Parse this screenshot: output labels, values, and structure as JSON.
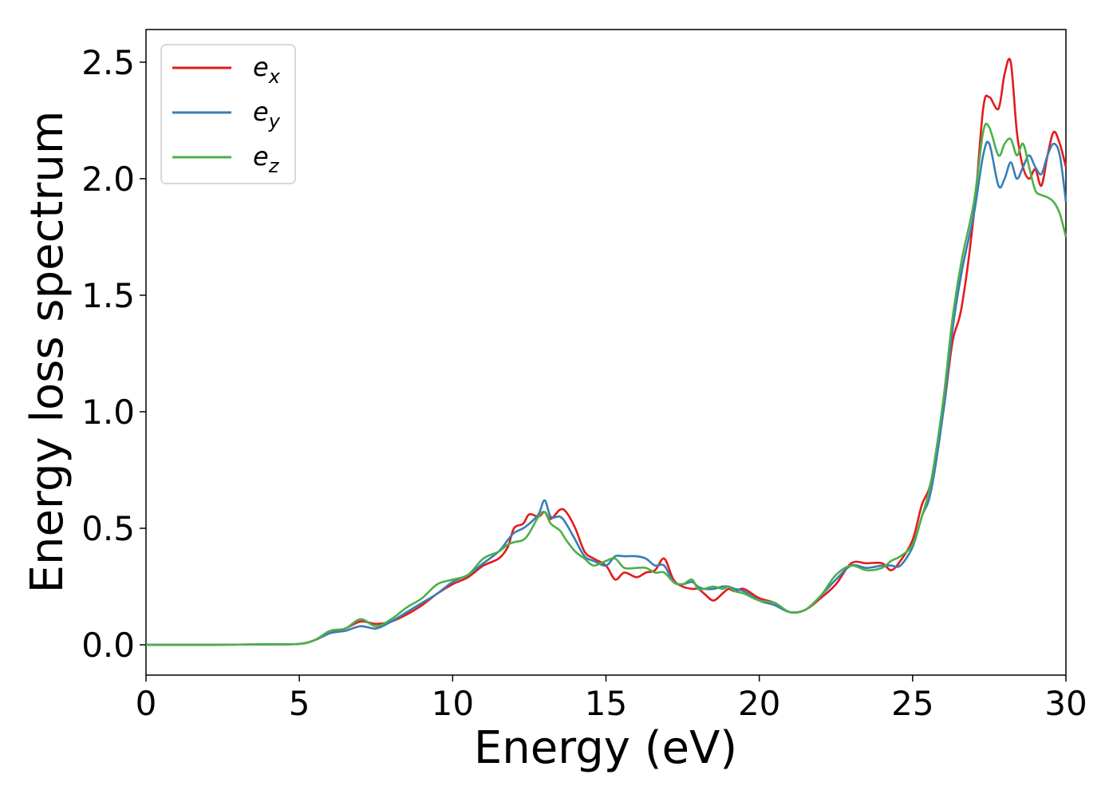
{
  "chart_data": {
    "type": "line",
    "title": "",
    "xlabel": "Energy (eV)",
    "ylabel": "Energy loss spectrum",
    "xlim": [
      0,
      30
    ],
    "ylim": [
      -0.13,
      2.64
    ],
    "xticks": [
      0,
      5,
      10,
      15,
      20,
      25,
      30
    ],
    "xtick_labels": [
      "0",
      "5",
      "10",
      "15",
      "20",
      "25",
      "30"
    ],
    "yticks": [
      0.0,
      0.5,
      1.0,
      1.5,
      2.0,
      2.5
    ],
    "ytick_labels": [
      "0.0",
      "0.5",
      "1.0",
      "1.5",
      "2.0",
      "2.5"
    ],
    "grid": false,
    "legend_position": "top-left",
    "series": [
      {
        "name": "e",
        "subscript": "x",
        "color": "#e41a1c",
        "x": [
          0,
          1,
          2,
          3,
          4,
          5,
          5.5,
          6,
          6.5,
          7,
          7.5,
          8,
          8.5,
          9,
          9.5,
          10,
          10.5,
          11,
          11.5,
          11.8,
          12,
          12.3,
          12.5,
          12.8,
          13,
          13.2,
          13.5,
          13.7,
          14,
          14.3,
          14.6,
          15,
          15.3,
          15.6,
          16,
          16.3,
          16.6,
          16.9,
          17.2,
          17.5,
          17.8,
          18,
          18.2,
          18.5,
          18.8,
          19,
          19.2,
          19.5,
          20,
          20.5,
          21,
          21.5,
          22,
          22.5,
          23,
          23.5,
          24,
          24.3,
          24.6,
          25,
          25.3,
          25.6,
          26,
          26.3,
          26.6,
          27,
          27.3,
          27.5,
          27.8,
          28,
          28.2,
          28.4,
          28.6,
          28.8,
          29,
          29.2,
          29.4,
          29.6,
          29.8,
          30
        ],
        "y": [
          0,
          0,
          0,
          0.001,
          0.002,
          0.004,
          0.02,
          0.05,
          0.07,
          0.1,
          0.09,
          0.1,
          0.13,
          0.17,
          0.22,
          0.26,
          0.29,
          0.34,
          0.37,
          0.42,
          0.5,
          0.52,
          0.56,
          0.55,
          0.57,
          0.54,
          0.58,
          0.57,
          0.5,
          0.4,
          0.37,
          0.34,
          0.28,
          0.31,
          0.29,
          0.31,
          0.32,
          0.37,
          0.28,
          0.25,
          0.24,
          0.24,
          0.22,
          0.19,
          0.22,
          0.24,
          0.23,
          0.24,
          0.2,
          0.18,
          0.14,
          0.15,
          0.2,
          0.26,
          0.35,
          0.35,
          0.35,
          0.32,
          0.36,
          0.45,
          0.6,
          0.7,
          1.0,
          1.3,
          1.45,
          1.85,
          2.3,
          2.35,
          2.3,
          2.45,
          2.5,
          2.2,
          2.05,
          2.0,
          2.04,
          1.97,
          2.1,
          2.2,
          2.15,
          2.05
        ]
      },
      {
        "name": "e",
        "subscript": "y",
        "color": "#377eb8",
        "x": [
          0,
          1,
          2,
          3,
          4,
          5,
          5.5,
          6,
          6.5,
          7,
          7.5,
          8,
          8.5,
          9,
          9.5,
          10,
          10.5,
          11,
          11.5,
          11.8,
          12,
          12.3,
          12.5,
          12.8,
          13,
          13.2,
          13.5,
          13.7,
          14,
          14.3,
          14.6,
          15,
          15.3,
          15.6,
          16,
          16.3,
          16.6,
          16.9,
          17.2,
          17.5,
          17.8,
          18,
          18.2,
          18.5,
          18.8,
          19,
          19.2,
          19.5,
          20,
          20.5,
          21,
          21.5,
          22,
          22.5,
          23,
          23.5,
          24,
          24.3,
          24.6,
          25,
          25.3,
          25.6,
          26,
          26.3,
          26.6,
          27,
          27.3,
          27.5,
          27.8,
          28,
          28.2,
          28.4,
          28.6,
          28.8,
          29,
          29.2,
          29.4,
          29.6,
          29.8,
          30
        ],
        "y": [
          0,
          0,
          0,
          0.001,
          0.002,
          0.004,
          0.02,
          0.05,
          0.06,
          0.08,
          0.07,
          0.1,
          0.14,
          0.18,
          0.22,
          0.27,
          0.3,
          0.35,
          0.4,
          0.45,
          0.48,
          0.5,
          0.52,
          0.56,
          0.62,
          0.55,
          0.55,
          0.52,
          0.45,
          0.38,
          0.36,
          0.34,
          0.38,
          0.38,
          0.38,
          0.37,
          0.34,
          0.34,
          0.27,
          0.26,
          0.27,
          0.25,
          0.24,
          0.24,
          0.25,
          0.25,
          0.24,
          0.23,
          0.19,
          0.17,
          0.14,
          0.15,
          0.21,
          0.28,
          0.34,
          0.33,
          0.34,
          0.34,
          0.34,
          0.42,
          0.55,
          0.66,
          1.0,
          1.35,
          1.6,
          1.85,
          2.1,
          2.15,
          1.97,
          2.0,
          2.07,
          2.0,
          2.05,
          2.1,
          2.05,
          2.02,
          2.1,
          2.15,
          2.1,
          1.9
        ]
      },
      {
        "name": "e",
        "subscript": "z",
        "color": "#4daf4a",
        "x": [
          0,
          1,
          2,
          3,
          4,
          5,
          5.5,
          6,
          6.5,
          7,
          7.5,
          8,
          8.5,
          9,
          9.5,
          10,
          10.5,
          11,
          11.5,
          11.8,
          12,
          12.3,
          12.5,
          12.8,
          13,
          13.2,
          13.5,
          13.7,
          14,
          14.3,
          14.6,
          15,
          15.3,
          15.6,
          16,
          16.3,
          16.6,
          16.9,
          17.2,
          17.5,
          17.8,
          18,
          18.2,
          18.5,
          18.8,
          19,
          19.2,
          19.5,
          20,
          20.5,
          21,
          21.5,
          22,
          22.5,
          23,
          23.5,
          24,
          24.3,
          24.6,
          25,
          25.3,
          25.6,
          26,
          26.3,
          26.6,
          27,
          27.3,
          27.5,
          27.8,
          28,
          28.2,
          28.4,
          28.6,
          28.8,
          29,
          29.2,
          29.4,
          29.6,
          29.8,
          30
        ],
        "y": [
          0,
          0,
          0,
          0.001,
          0.002,
          0.004,
          0.02,
          0.06,
          0.07,
          0.11,
          0.08,
          0.11,
          0.16,
          0.2,
          0.26,
          0.28,
          0.3,
          0.37,
          0.4,
          0.43,
          0.44,
          0.45,
          0.48,
          0.55,
          0.57,
          0.52,
          0.49,
          0.45,
          0.4,
          0.37,
          0.34,
          0.36,
          0.37,
          0.33,
          0.33,
          0.33,
          0.31,
          0.31,
          0.27,
          0.26,
          0.28,
          0.24,
          0.24,
          0.25,
          0.24,
          0.25,
          0.23,
          0.22,
          0.19,
          0.18,
          0.14,
          0.15,
          0.21,
          0.3,
          0.34,
          0.32,
          0.33,
          0.36,
          0.38,
          0.43,
          0.55,
          0.7,
          1.05,
          1.4,
          1.65,
          1.9,
          2.2,
          2.22,
          2.1,
          2.15,
          2.17,
          2.1,
          2.15,
          2.05,
          1.95,
          1.93,
          1.92,
          1.9,
          1.85,
          1.75
        ]
      }
    ]
  }
}
